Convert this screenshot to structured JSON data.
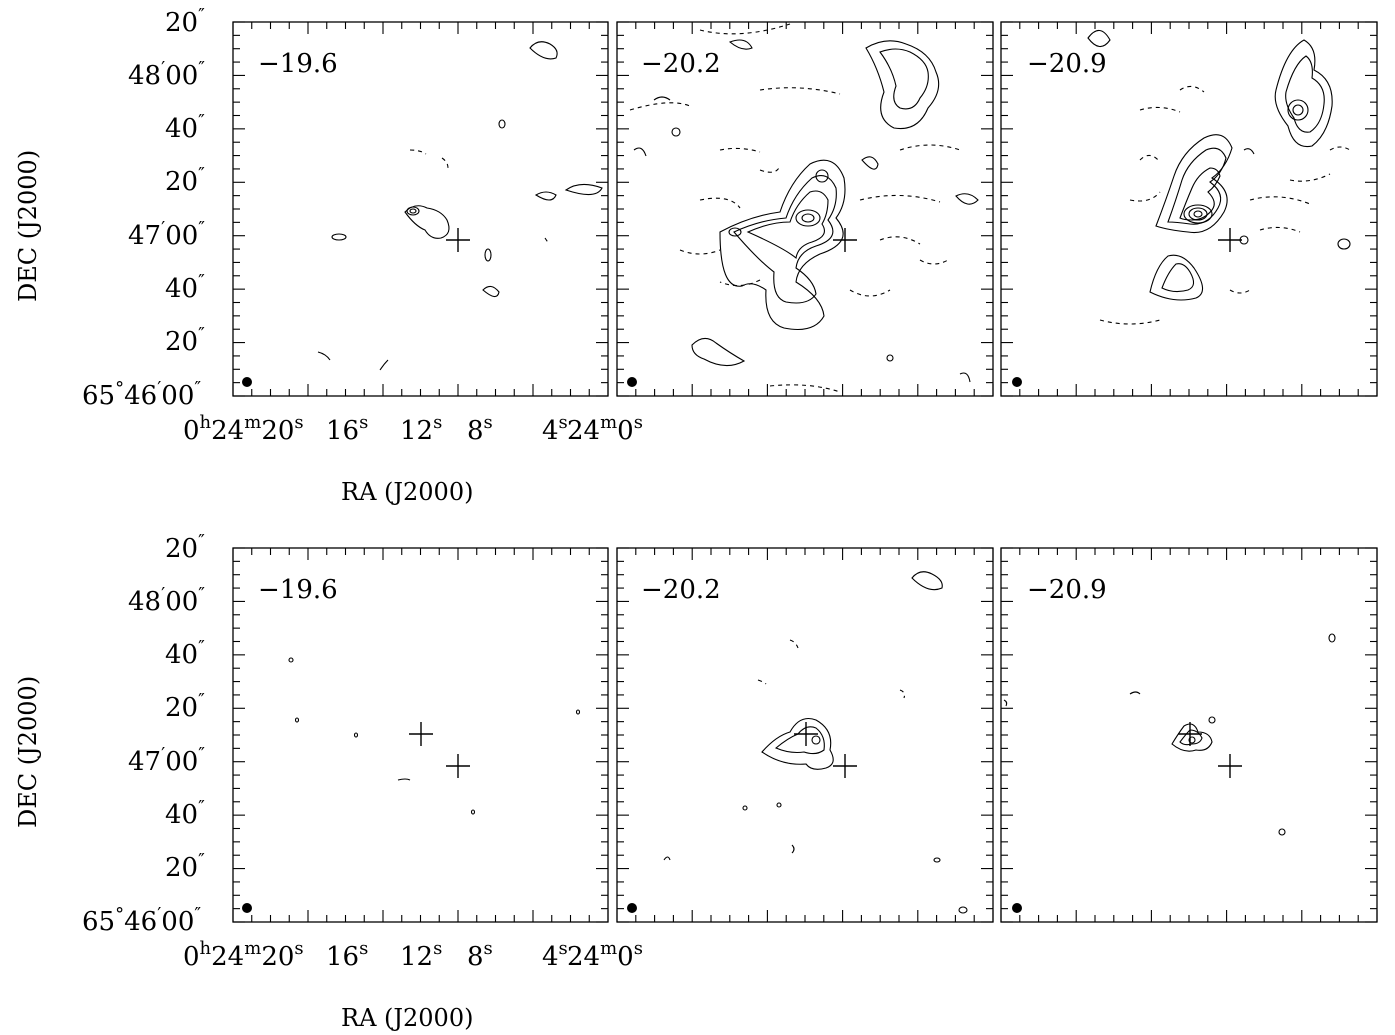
{
  "chart_data": [
    {
      "type": "contour",
      "row": "top",
      "xlabel": "RA (J2000)",
      "ylabel": "DEC (J2000)",
      "x_tick_labels": [
        {
          "h": "0",
          "m": "24",
          "s": "20"
        },
        {
          "s": "16"
        },
        {
          "s": "12"
        },
        {
          "s": "8"
        },
        {
          "s": "4"
        },
        {
          "m": "24",
          "s": "0"
        }
      ],
      "y_tick_labels": [
        {
          "v": "20",
          "unit": "″"
        },
        {
          "v": "48",
          "unit": "′",
          "v2": "00",
          "unit2": "″"
        },
        {
          "v": "40",
          "unit": "″"
        },
        {
          "v": "20",
          "unit": "″"
        },
        {
          "v": "47",
          "unit": "′",
          "v2": "00",
          "unit2": "″"
        },
        {
          "v": "40",
          "unit": "″"
        },
        {
          "v": "20",
          "unit": "″"
        },
        {
          "deg": "65",
          "v": "46",
          "unit": "′",
          "v2": "00",
          "unit2": "″"
        }
      ],
      "panels": [
        {
          "channel_label": "−19.6",
          "markers": [
            {
              "ra_s": 8.7,
              "dec_s": 60
            }
          ],
          "beam": true
        },
        {
          "channel_label": "−20.2",
          "markers": [
            {
              "ra_s": 8.7,
              "dec_s": 60
            }
          ],
          "beam": true
        },
        {
          "channel_label": "−20.9",
          "markers": [
            {
              "ra_s": 8.7,
              "dec_s": 60
            }
          ],
          "beam": true
        }
      ]
    },
    {
      "type": "contour",
      "row": "bottom",
      "xlabel": "RA (J2000)",
      "ylabel": "DEC (J2000)",
      "x_tick_labels": [
        {
          "h": "0",
          "m": "24",
          "s": "20"
        },
        {
          "s": "16"
        },
        {
          "s": "12"
        },
        {
          "s": "8"
        },
        {
          "s": "4"
        },
        {
          "m": "24",
          "s": "0"
        }
      ],
      "y_tick_labels": [
        {
          "v": "20",
          "unit": "″"
        },
        {
          "v": "48",
          "unit": "′",
          "v2": "00",
          "unit2": "″"
        },
        {
          "v": "40",
          "unit": "″"
        },
        {
          "v": "20",
          "unit": "″"
        },
        {
          "v": "47",
          "unit": "′",
          "v2": "00",
          "unit2": "″"
        },
        {
          "v": "40",
          "unit": "″"
        },
        {
          "v": "20",
          "unit": "″"
        },
        {
          "deg": "65",
          "v": "46",
          "unit": "′",
          "v2": "00",
          "unit2": "″"
        }
      ],
      "panels": [
        {
          "channel_label": "−19.6",
          "markers": [
            {
              "ra_s": 8.7,
              "dec_s": 60
            },
            {
              "ra_s": 11.4,
              "dec_s": 70
            }
          ],
          "beam": true
        },
        {
          "channel_label": "−20.2",
          "markers": [
            {
              "ra_s": 8.7,
              "dec_s": 60
            },
            {
              "ra_s": 11.4,
              "dec_s": 70
            }
          ],
          "beam": true
        },
        {
          "channel_label": "−20.9",
          "markers": [
            {
              "ra_s": 8.7,
              "dec_s": 60
            },
            {
              "ra_s": 11.4,
              "dec_s": 70
            }
          ],
          "beam": true
        }
      ]
    }
  ]
}
